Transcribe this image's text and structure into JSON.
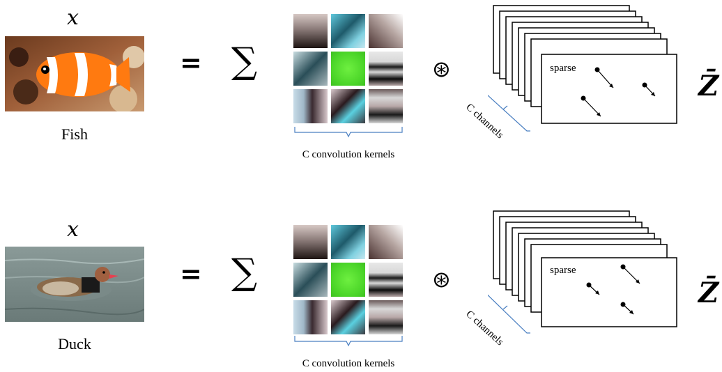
{
  "rows": [
    {
      "input_symbol": "x",
      "caption": "Fish",
      "sum_symbol": "∑",
      "equals": "=",
      "kernels_caption": "C convolution kernels",
      "conv_symbol": "⊛",
      "sparse_label": "sparse",
      "channels_label": "C channels",
      "output_symbol": "Z̄"
    },
    {
      "input_symbol": "x",
      "caption": "Duck",
      "sum_symbol": "∑",
      "equals": "=",
      "kernels_caption": "C convolution kernels",
      "conv_symbol": "⊛",
      "sparse_label": "sparse",
      "channels_label": "C channels",
      "output_symbol": "Z̄"
    }
  ],
  "kernel_colors": [
    [
      "#5a4a48",
      "#3fb3c8",
      "#6e5a56"
    ],
    [
      "#2e4a52",
      "#5fe03a",
      "#3a3a3a"
    ],
    [
      "#c6b6be",
      "#3a4e5a",
      "#4a4a48"
    ]
  ],
  "colors": {
    "brace": "#4a7fc1",
    "stroke": "#000000"
  }
}
